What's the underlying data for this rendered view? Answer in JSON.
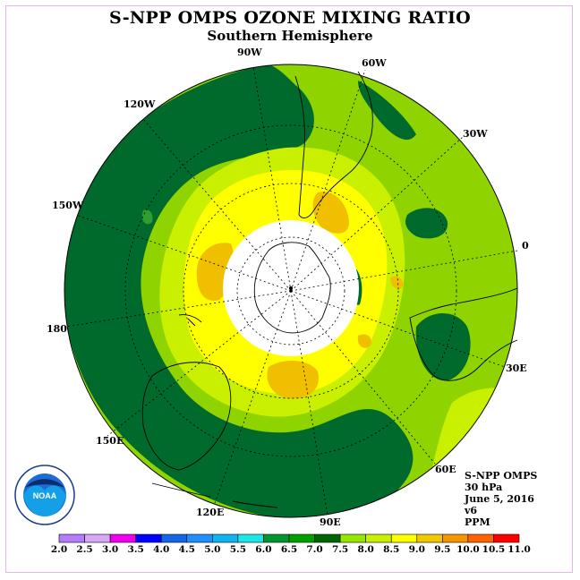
{
  "title": "S-NPP OMPS OZONE MIXING RATIO",
  "subtitle": "Southern Hemisphere",
  "longitude_labels": [
    {
      "id": "lon-90w",
      "text": "90W"
    },
    {
      "id": "lon-60w",
      "text": "60W"
    },
    {
      "id": "lon-30w",
      "text": "30W"
    },
    {
      "id": "lon-0",
      "text": "0"
    },
    {
      "id": "lon-30e",
      "text": "30E"
    },
    {
      "id": "lon-60e",
      "text": "60E"
    },
    {
      "id": "lon-90e",
      "text": "90E"
    },
    {
      "id": "lon-120e",
      "text": "120E"
    },
    {
      "id": "lon-150e",
      "text": "150E"
    },
    {
      "id": "lon-180",
      "text": "180"
    },
    {
      "id": "lon-150w",
      "text": "150W"
    },
    {
      "id": "lon-120w",
      "text": "120W"
    }
  ],
  "info": {
    "instrument": "S-NPP OMPS",
    "level": "30 hPa",
    "date": "June 5, 2016",
    "version": "v6",
    "units": "PPM"
  },
  "logo": {
    "text": "NOAA",
    "ring_text": "NATIONAL OCEANIC AND ATMOSPHERIC ADMINISTRATION · U.S. DEPARTMENT OF COMMERCE"
  },
  "colorbar": {
    "labels": [
      "2.0",
      "2.5",
      "3.0",
      "3.5",
      "4.0",
      "4.5",
      "5.0",
      "5.5",
      "6.0",
      "6.5",
      "7.0",
      "7.5",
      "8.0",
      "8.5",
      "9.0",
      "9.5",
      "10.0",
      "10.5",
      "11.0"
    ],
    "colors": [
      "#b57bff",
      "#d7a6f5",
      "#ee00ee",
      "#0000ff",
      "#1466e6",
      "#1e90ff",
      "#10b4f0",
      "#1ee6e6",
      "#009632",
      "#00a000",
      "#006400",
      "#96e600",
      "#c8f000",
      "#ffff00",
      "#f0c800",
      "#f59600",
      "#ff6400",
      "#ff0000",
      "#a05028"
    ]
  },
  "colors": {
    "dark_green": "#006a2c",
    "green": "#2f9e2f",
    "light_green": "#8fd400",
    "yellow_green": "#c8f000",
    "yellow": "#ffff00",
    "orange": "#f0c000",
    "coast": "#000000"
  }
}
